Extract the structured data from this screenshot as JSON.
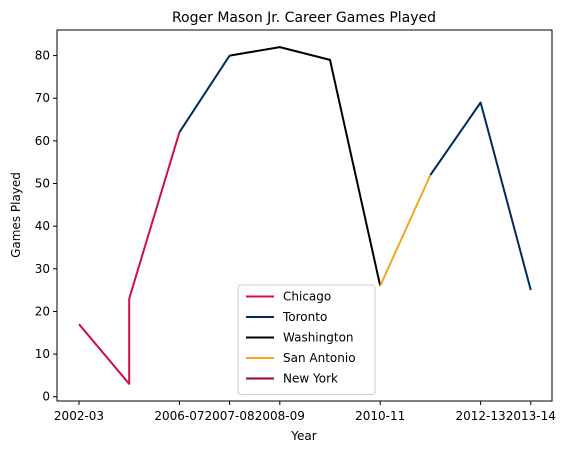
{
  "chart_data": {
    "type": "line",
    "title": "Roger Mason Jr. Career Games Played",
    "xlabel": "Year",
    "ylabel": "Games Played",
    "ylim": [
      -1,
      86
    ],
    "grid": false,
    "legend_position": "lower-center",
    "x_ticks": [
      "2002-03",
      "2006-07",
      "2007-08",
      "2008-09",
      "2010-11",
      "2012-13",
      "2013-14"
    ],
    "y_ticks": [
      0,
      10,
      20,
      30,
      40,
      50,
      60,
      70,
      80
    ],
    "series": [
      {
        "name": "Chicago",
        "color": "#ce1141",
        "points": [
          {
            "x": "2002-03",
            "y": 17
          },
          {
            "x": "2003-04",
            "y": 3
          },
          {
            "x": "2003-04",
            "y": 23
          },
          {
            "x": "2006-07",
            "y": 62
          }
        ]
      },
      {
        "name": "Toronto",
        "color": "#002b5c",
        "points": [
          {
            "x": "2006-07",
            "y": 62
          },
          {
            "x": "2007-08",
            "y": 80
          }
        ]
      },
      {
        "name": "Washington",
        "color": "#000000",
        "points": [
          {
            "x": "2007-08",
            "y": 80
          },
          {
            "x": "2008-09",
            "y": 82
          },
          {
            "x": "2009-10",
            "y": 79
          },
          {
            "x": "2010-11",
            "y": 26
          }
        ]
      },
      {
        "name": "San Antonio",
        "color": "#f5a623",
        "points": [
          {
            "x": "2010-11",
            "y": 26
          },
          {
            "x": "2011-12",
            "y": 52
          }
        ]
      },
      {
        "name": "Toronto",
        "color": "#002b5c",
        "show_in_legend": false,
        "points": [
          {
            "x": "2011-12",
            "y": 52
          },
          {
            "x": "2012-13",
            "y": 69
          },
          {
            "x": "2013-14",
            "y": 25
          }
        ]
      },
      {
        "name": "New York",
        "color": "#9b0036",
        "points": []
      }
    ]
  }
}
